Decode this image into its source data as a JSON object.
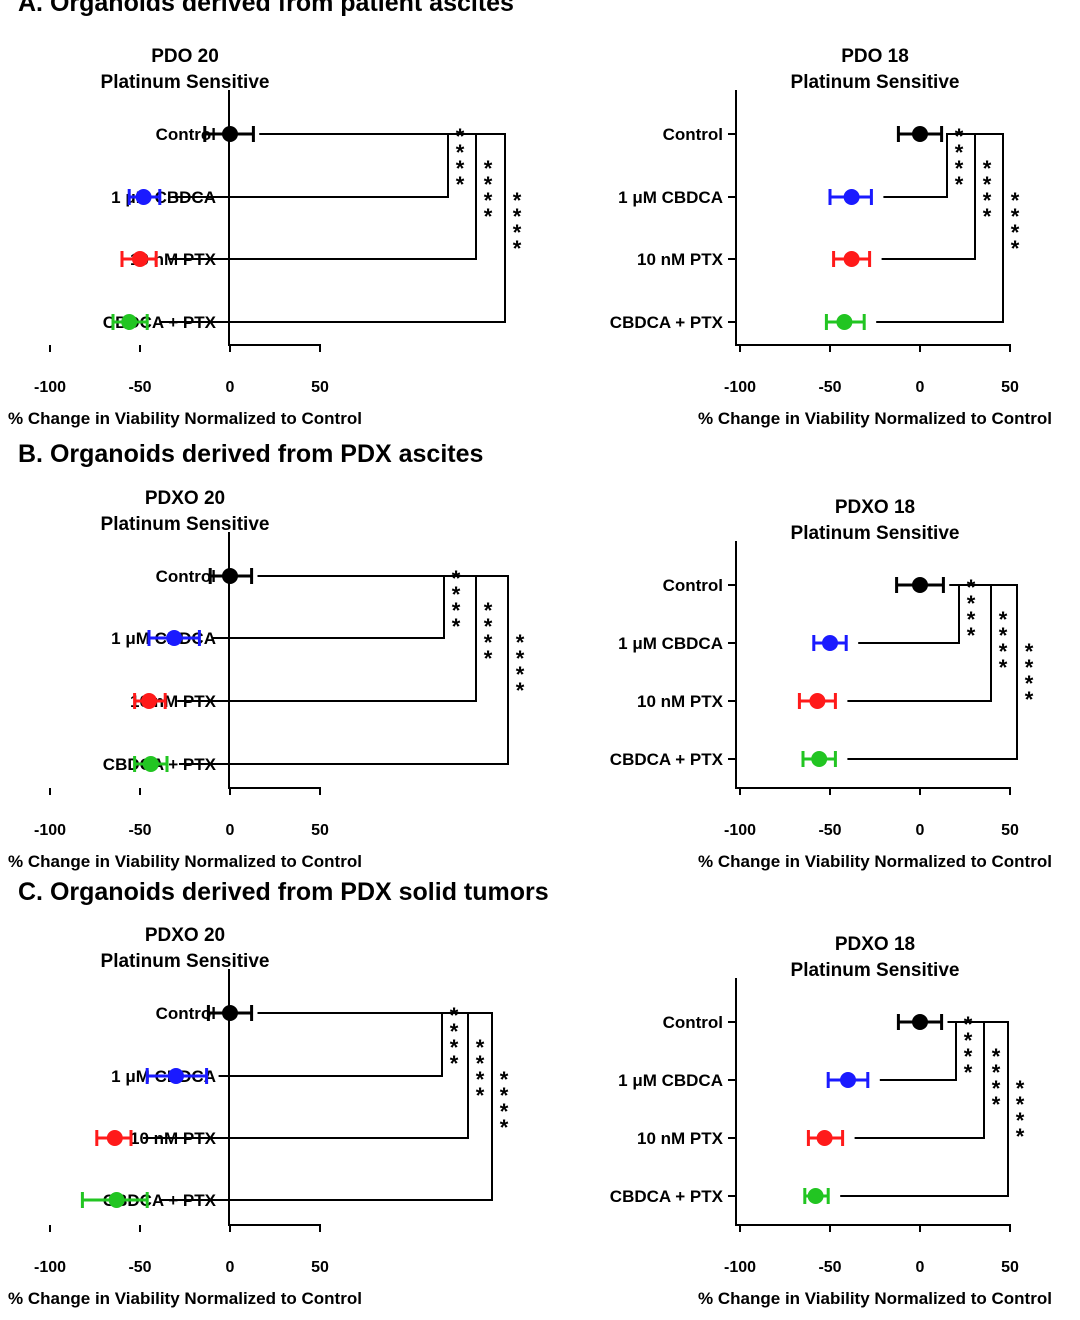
{
  "sections": [
    {
      "title": "A. Organoids derived from patient ascites"
    },
    {
      "title": "B. Organoids derived from PDX ascites"
    },
    {
      "title": "C. Organoids derived from PDX solid tumors"
    }
  ],
  "colors": {
    "Control": "#000000",
    "1 μM CBDCA": "#1a1aff",
    "10 nM PTX": "#ff1a1a",
    "CBDCA + PTX": "#22c522"
  },
  "chart_data": [
    {
      "type": "scatter",
      "title": "PDO 20",
      "subtitle": "Platinum Sensitive",
      "xlabel": "% Change in Viability Normalized to Control",
      "xlim": [
        -100,
        50
      ],
      "xticks": [
        -100,
        -50,
        0,
        50
      ],
      "categories": [
        "Control",
        "1 μM CBDCA",
        "10 nM PTX",
        "CBDCA + PTX"
      ],
      "values": [
        0,
        -48,
        -50,
        -56
      ],
      "err_low": [
        -14,
        -56,
        -60,
        -65
      ],
      "err_high": [
        13,
        -39,
        -41,
        -46
      ],
      "annotations": [
        "****",
        "****",
        "****"
      ]
    },
    {
      "type": "scatter",
      "title": "PDO 18",
      "subtitle": "Platinum Sensitive",
      "xlabel": "% Change in Viability Normalized to Control",
      "xlim": [
        -100,
        50
      ],
      "xticks": [
        -100,
        -50,
        0,
        50
      ],
      "categories": [
        "Control",
        "1 μM CBDCA",
        "10 nM PTX",
        "CBDCA + PTX"
      ],
      "values": [
        0,
        -38,
        -38,
        -42
      ],
      "err_low": [
        -12,
        -50,
        -48,
        -52
      ],
      "err_high": [
        12,
        -27,
        -28,
        -31
      ],
      "annotations": [
        "****",
        "****",
        "****"
      ]
    },
    {
      "type": "scatter",
      "title": "PDXO 20",
      "subtitle": "Platinum Sensitive",
      "xlabel": "% Change in Viability Normalized to Control",
      "xlim": [
        -100,
        50
      ],
      "xticks": [
        -100,
        -50,
        0,
        50
      ],
      "categories": [
        "Control",
        "1 μM CBDCA",
        "10 nM PTX",
        "CBDCA + PTX"
      ],
      "values": [
        0,
        -31,
        -45,
        -44
      ],
      "err_low": [
        -11,
        -45,
        -53,
        -53
      ],
      "err_high": [
        12,
        -17,
        -36,
        -35
      ],
      "annotations": [
        "****",
        "****",
        "****"
      ]
    },
    {
      "type": "scatter",
      "title": "PDXO 18",
      "subtitle": "Platinum Sensitive",
      "xlabel": "% Change in Viability Normalized to Control",
      "xlim": [
        -100,
        50
      ],
      "xticks": [
        -100,
        -50,
        0,
        50
      ],
      "categories": [
        "Control",
        "1 μM CBDCA",
        "10 nM PTX",
        "CBDCA + PTX"
      ],
      "values": [
        0,
        -50,
        -57,
        -56
      ],
      "err_low": [
        -13,
        -59,
        -67,
        -65
      ],
      "err_high": [
        13,
        -41,
        -47,
        -47
      ],
      "annotations": [
        "****",
        "****",
        "****"
      ]
    },
    {
      "type": "scatter",
      "title": "PDXO 20",
      "subtitle": "Platinum Sensitive",
      "xlabel": "% Change in Viability Normalized to Control",
      "xlim": [
        -100,
        50
      ],
      "xticks": [
        -100,
        -50,
        0,
        50
      ],
      "categories": [
        "Control",
        "1 μM CBDCA",
        "10 nM PTX",
        "CBDCA + PTX"
      ],
      "values": [
        0,
        -30,
        -64,
        -63
      ],
      "err_low": [
        -12,
        -46,
        -74,
        -82
      ],
      "err_high": [
        12,
        -13,
        -55,
        -46
      ],
      "annotations": [
        "****",
        "****",
        "****"
      ]
    },
    {
      "type": "scatter",
      "title": "PDXO 18",
      "subtitle": "Platinum Sensitive",
      "xlabel": "% Change in Viability Normalized to Control",
      "xlim": [
        -100,
        50
      ],
      "xticks": [
        -100,
        -50,
        0,
        50
      ],
      "categories": [
        "Control",
        "1 μM CBDCA",
        "10 nM PTX",
        "CBDCA + PTX"
      ],
      "values": [
        0,
        -40,
        -53,
        -58
      ],
      "err_low": [
        -12,
        -51,
        -62,
        -64
      ],
      "err_high": [
        12,
        -29,
        -43,
        -51
      ],
      "annotations": [
        "****",
        "****",
        "****"
      ]
    }
  ]
}
